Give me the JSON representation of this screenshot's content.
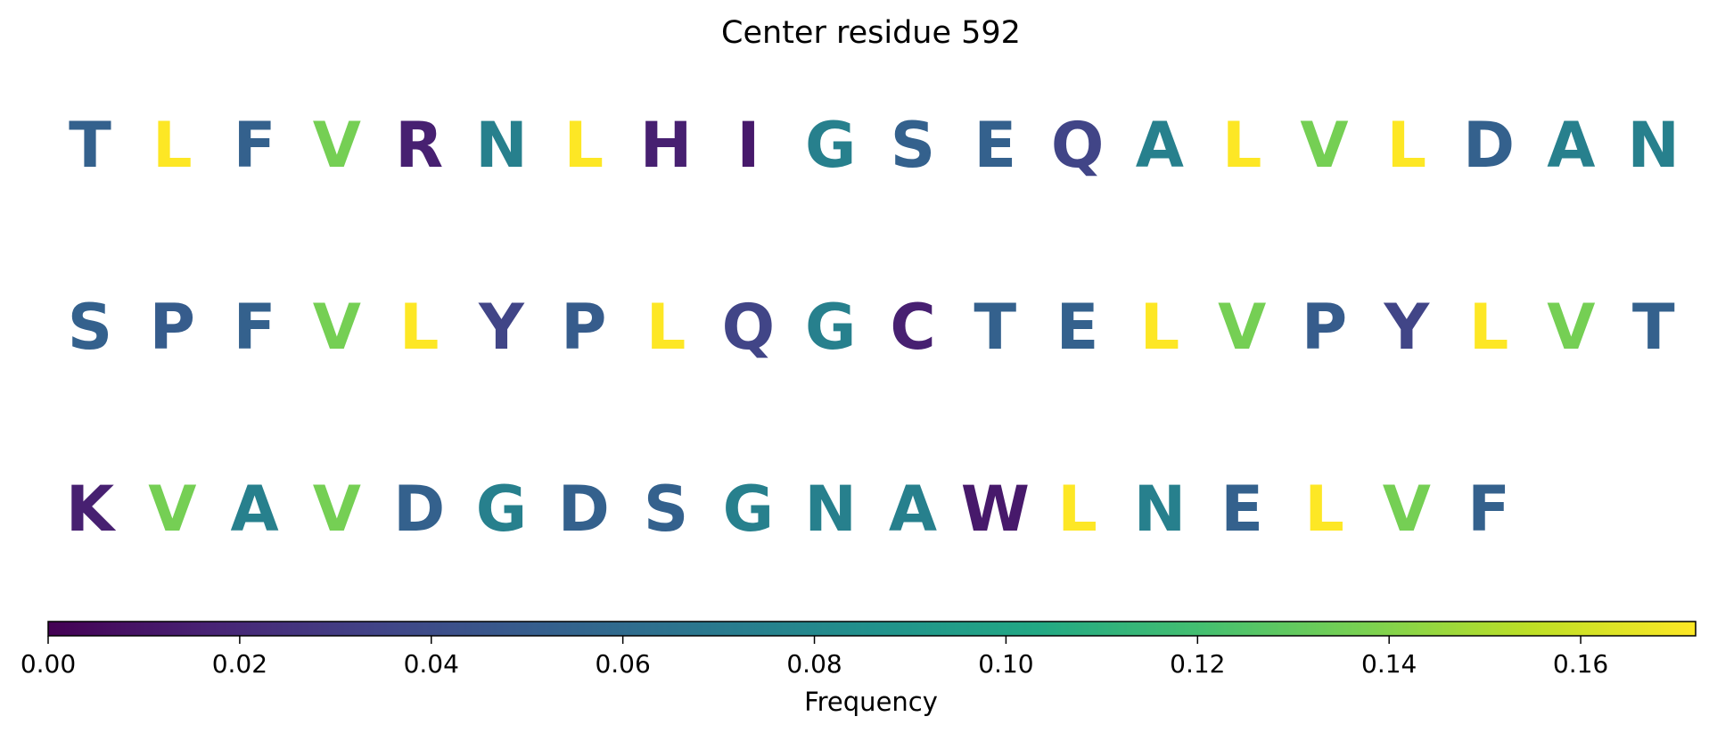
{
  "chart_data": {
    "type": "heatmap",
    "title": "Center residue 592",
    "rows": [
      {
        "letters": [
          "T",
          "L",
          "F",
          "V",
          "R",
          "N",
          "L",
          "H",
          "I",
          "G",
          "S",
          "E",
          "Q",
          "A",
          "L",
          "V",
          "L",
          "D",
          "A",
          "N"
        ],
        "values": [
          0.053,
          0.172,
          0.053,
          0.136,
          0.015,
          0.074,
          0.172,
          0.015,
          0.012,
          0.074,
          0.053,
          0.053,
          0.035,
          0.074,
          0.172,
          0.136,
          0.172,
          0.053,
          0.074,
          0.074
        ]
      },
      {
        "letters": [
          "S",
          "P",
          "F",
          "V",
          "L",
          "Y",
          "P",
          "L",
          "Q",
          "G",
          "C",
          "T",
          "E",
          "L",
          "V",
          "P",
          "Y",
          "L",
          "V",
          "T"
        ],
        "values": [
          0.053,
          0.05,
          0.053,
          0.136,
          0.172,
          0.035,
          0.05,
          0.172,
          0.035,
          0.074,
          0.015,
          0.053,
          0.053,
          0.172,
          0.136,
          0.05,
          0.035,
          0.172,
          0.136,
          0.053
        ]
      },
      {
        "letters": [
          "K",
          "V",
          "A",
          "V",
          "D",
          "G",
          "D",
          "S",
          "G",
          "N",
          "A",
          "W",
          "L",
          "N",
          "E",
          "L",
          "V",
          "F"
        ],
        "values": [
          0.015,
          0.136,
          0.074,
          0.136,
          0.053,
          0.074,
          0.053,
          0.053,
          0.074,
          0.074,
          0.074,
          0.012,
          0.172,
          0.074,
          0.053,
          0.172,
          0.136,
          0.053
        ]
      }
    ],
    "colorbar": {
      "colormap": "viridis",
      "label": "Frequency",
      "range": [
        0.0,
        0.172
      ],
      "ticks": [
        0.0,
        0.02,
        0.04,
        0.06,
        0.08,
        0.1,
        0.12,
        0.14,
        0.16
      ],
      "tick_labels": [
        "0.00",
        "0.02",
        "0.04",
        "0.06",
        "0.08",
        "0.10",
        "0.12",
        "0.14",
        "0.16"
      ]
    }
  }
}
